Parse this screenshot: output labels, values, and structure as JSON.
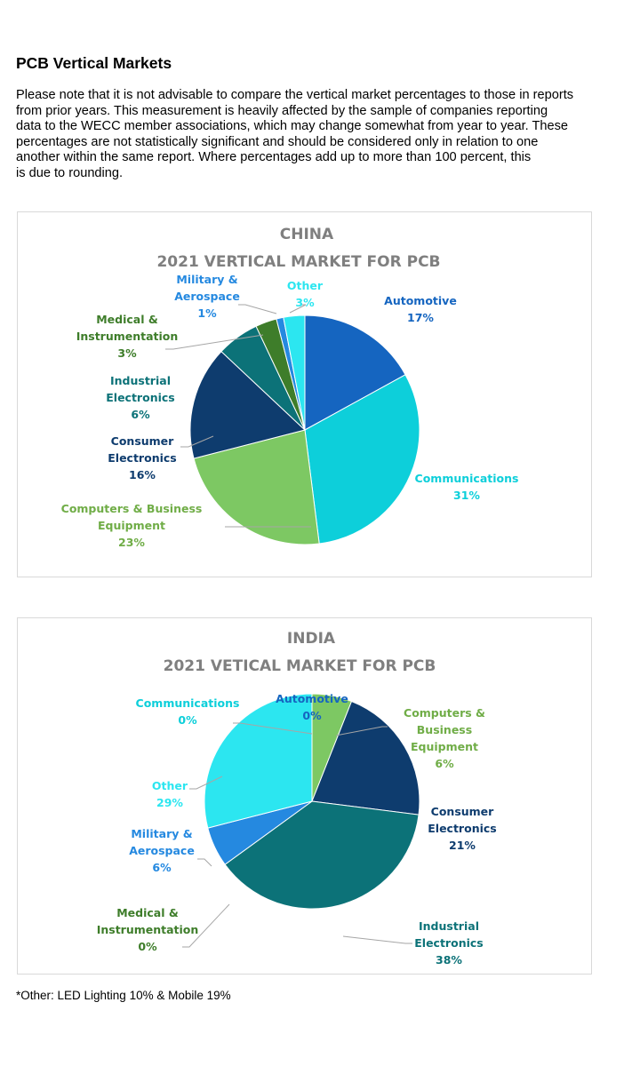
{
  "page": {
    "heading": "PCB Vertical Markets",
    "note": "Please note that it is not advisable to compare the vertical market percentages to those in reports\nfrom prior years. This measurement is heavily affected by the sample of companies reporting\ndata to the WECC member associations, which may change somewhat from year to year. These\npercentages are not statistically significant and should be considered only in relation to one\nanother within the same report. Where percentages           add up to more than 100 percent, this\nis due to rounding.",
    "footnote": "*Other: LED Lighting 10% & Mobile 19%"
  },
  "chart_data": [
    {
      "type": "pie",
      "country": "CHINA",
      "title": "2021 VERTICAL MARKET FOR PCB",
      "start_angle_deg": 0,
      "slices": [
        {
          "label": "Automotive",
          "value": 17,
          "color": "#1565c0",
          "label_color": "#1565c0"
        },
        {
          "label": "Communications",
          "value": 31,
          "color": "#0dcfda",
          "label_color": "#0dcfda"
        },
        {
          "label": "Computers & Business Equipment",
          "value": 23,
          "color": "#7dc863",
          "label_color": "#70ad47"
        },
        {
          "label": "Consumer Electronics",
          "value": 16,
          "color": "#0e3c6e",
          "label_color": "#0e3c6e"
        },
        {
          "label": "Industrial Electronics",
          "value": 6,
          "color": "#0c7278",
          "label_color": "#0c7278"
        },
        {
          "label": "Medical & Instrumentation",
          "value": 3,
          "color": "#3e7d2a",
          "label_color": "#3e7d2a"
        },
        {
          "label": "Military & Aerospace",
          "value": 1,
          "color": "#2589e0",
          "label_color": "#2589e0"
        },
        {
          "label": "Other",
          "value": 3,
          "color": "#2ce6f0",
          "label_color": "#2ce6f0"
        }
      ],
      "labels": [
        {
          "lines": [
            "Automotive",
            "17%"
          ]
        },
        {
          "lines": [
            "Communications",
            "31%"
          ]
        },
        {
          "lines": [
            "Computers & Business",
            "Equipment",
            "23%"
          ]
        },
        {
          "lines": [
            "Consumer",
            "Electronics",
            "16%"
          ]
        },
        {
          "lines": [
            "Industrial",
            "Electronics",
            "6%"
          ]
        },
        {
          "lines": [
            "Medical &",
            "Instrumentation",
            "3%"
          ]
        },
        {
          "lines": [
            "Military &",
            "Aerospace",
            "1%"
          ]
        },
        {
          "lines": [
            "Other",
            "3%"
          ]
        }
      ]
    },
    {
      "type": "pie",
      "country": "INDIA",
      "title": "2021 VETICAL MARKET FOR PCB",
      "start_angle_deg": 0,
      "slices": [
        {
          "label": "Automotive",
          "value": 0,
          "color": "#1565c0",
          "label_color": "#1565c0"
        },
        {
          "label": "Computers & Business Equipment",
          "value": 6,
          "color": "#7dc863",
          "label_color": "#70ad47"
        },
        {
          "label": "Consumer Electronics",
          "value": 21,
          "color": "#0e3c6e",
          "label_color": "#0e3c6e"
        },
        {
          "label": "Industrial Electronics",
          "value": 38,
          "color": "#0c7278",
          "label_color": "#0c7278"
        },
        {
          "label": "Medical & Instrumentation",
          "value": 0,
          "color": "#3e7d2a",
          "label_color": "#3e7d2a"
        },
        {
          "label": "Military & Aerospace",
          "value": 6,
          "color": "#2589e0",
          "label_color": "#2589e0"
        },
        {
          "label": "Other",
          "value": 29,
          "color": "#2ce6f0",
          "label_color": "#2ce6f0"
        },
        {
          "label": "Communications",
          "value": 0,
          "color": "#0dcfda",
          "label_color": "#0dcfda"
        }
      ],
      "labels": [
        {
          "lines": [
            "Automotive",
            "0%"
          ]
        },
        {
          "lines": [
            "Computers &",
            "Business",
            "Equipment",
            "6%"
          ]
        },
        {
          "lines": [
            "Consumer",
            "Electronics",
            "21%"
          ]
        },
        {
          "lines": [
            "Industrial",
            "Electronics",
            "38%"
          ]
        },
        {
          "lines": [
            "Medical &",
            "Instrumentation",
            "0%"
          ]
        },
        {
          "lines": [
            "Military &",
            "Aerospace",
            "6%"
          ]
        },
        {
          "lines": [
            "Other",
            "29%"
          ]
        },
        {
          "lines": [
            "Communications",
            "0%"
          ]
        }
      ]
    }
  ]
}
